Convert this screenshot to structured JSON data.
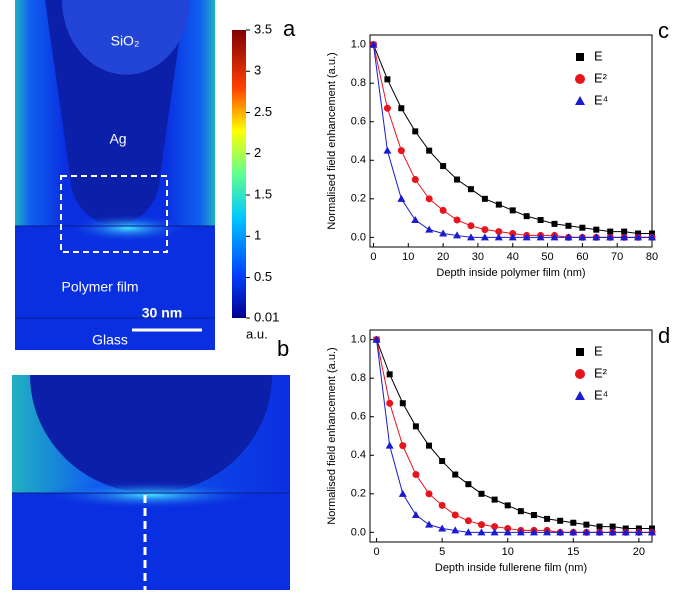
{
  "panels": [
    "a",
    "b",
    "c",
    "d"
  ],
  "image_a": {
    "labels": [
      "SiO₂",
      "Ag",
      "Polymer film",
      "30 nm",
      "Glass"
    ]
  },
  "colorbar": {
    "ticks": [
      3.5,
      3,
      2.5,
      2,
      1.5,
      1,
      0.5,
      0.01
    ],
    "unit": "a.u."
  },
  "chart_data": [
    {
      "type": "line",
      "xlabel": "Depth inside polymer film (nm)",
      "ylabel": "Normalised field enhancement (a.u.)",
      "x": [
        0,
        4,
        8,
        12,
        16,
        20,
        24,
        28,
        32,
        36,
        40,
        44,
        48,
        52,
        56,
        60,
        64,
        68,
        72,
        76,
        80
      ],
      "series": [
        {
          "name": "E",
          "color": "#000000",
          "values": [
            1,
            0.82,
            0.67,
            0.55,
            0.45,
            0.37,
            0.3,
            0.25,
            0.2,
            0.17,
            0.14,
            0.11,
            0.09,
            0.07,
            0.06,
            0.05,
            0.04,
            0.03,
            0.03,
            0.02,
            0.02
          ]
        },
        {
          "name": "E²",
          "color": "#e8141c",
          "values": [
            1,
            0.67,
            0.45,
            0.3,
            0.2,
            0.14,
            0.09,
            0.06,
            0.04,
            0.03,
            0.02,
            0.01,
            0.01,
            0.01,
            0,
            0,
            0,
            0,
            0,
            0,
            0
          ]
        },
        {
          "name": "E⁴",
          "color": "#1a1ad0",
          "values": [
            1,
            0.45,
            0.2,
            0.09,
            0.04,
            0.02,
            0.01,
            0,
            0,
            0,
            0,
            0,
            0,
            0,
            0,
            0,
            0,
            0,
            0,
            0,
            0
          ]
        }
      ],
      "xlim": [
        -1,
        80
      ],
      "ylim": [
        -0.05,
        1.05
      ],
      "xticks": [
        0,
        10,
        20,
        30,
        40,
        50,
        60,
        70,
        80
      ],
      "yticks": [
        {
          "value": 0,
          "label": "0.0"
        },
        0.2,
        0.4,
        0.6,
        0.8,
        {
          "value": 1,
          "label": "1.0"
        }
      ],
      "legend": "upper-right"
    },
    {
      "type": "line",
      "xlabel": "Depth inside fullerene film (nm)",
      "ylabel": "Normalised field enhancement (a.u.)",
      "x": [
        0,
        1,
        2,
        3,
        4,
        5,
        6,
        7,
        8,
        9,
        10,
        11,
        12,
        13,
        14,
        15,
        16,
        17,
        18,
        19,
        20,
        21
      ],
      "series": [
        {
          "name": "E",
          "color": "#000000",
          "values": [
            1,
            0.82,
            0.67,
            0.55,
            0.45,
            0.37,
            0.3,
            0.25,
            0.2,
            0.17,
            0.14,
            0.11,
            0.09,
            0.07,
            0.06,
            0.05,
            0.04,
            0.03,
            0.03,
            0.02,
            0.02,
            0.02
          ]
        },
        {
          "name": "E²",
          "color": "#e8141c",
          "values": [
            1,
            0.67,
            0.45,
            0.3,
            0.2,
            0.14,
            0.09,
            0.06,
            0.04,
            0.03,
            0.02,
            0.01,
            0.01,
            0.01,
            0,
            0,
            0,
            0,
            0,
            0,
            0,
            0
          ]
        },
        {
          "name": "E⁴",
          "color": "#1a1ad0",
          "values": [
            1,
            0.45,
            0.2,
            0.09,
            0.04,
            0.02,
            0.01,
            0,
            0,
            0,
            0,
            0,
            0,
            0,
            0,
            0,
            0,
            0,
            0,
            0,
            0,
            0
          ]
        }
      ],
      "xlim": [
        -0.5,
        21
      ],
      "ylim": [
        -0.05,
        1.05
      ],
      "xticks": [
        0,
        5,
        10,
        15,
        20
      ],
      "yticks": [
        {
          "value": 0,
          "label": "0.0"
        },
        0.2,
        0.4,
        0.6,
        0.8,
        {
          "value": 1,
          "label": "1.0"
        }
      ],
      "legend": "upper-right"
    }
  ]
}
